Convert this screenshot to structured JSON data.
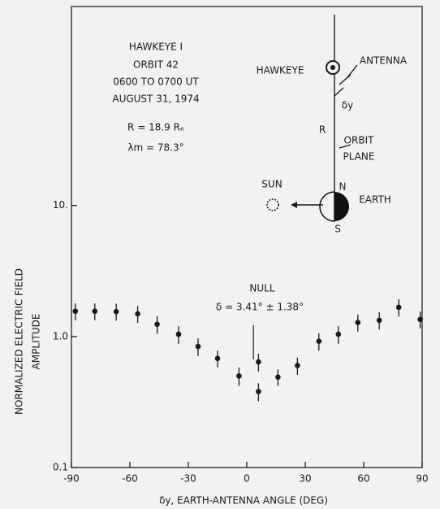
{
  "chart_data": {
    "type": "scatter",
    "annotations": {
      "block": [
        "HAWKEYE I",
        "ORBIT 42",
        "0600 TO 0700 UT",
        "AUGUST 31, 1974",
        "R = 18.9 Rₑ",
        "λm = 78.3°"
      ],
      "hawkeye": "HAWKEYE",
      "antenna": "ANTENNA",
      "delta": "δy",
      "r": "R",
      "orbit": "ORBIT",
      "plane": "PLANE",
      "sun": "SUN",
      "north": "N",
      "earth": "EARTH",
      "south": "S"
    },
    "null": {
      "label": "NULL",
      "text": "δ = 3.41° ± 1.38°",
      "x": 3.41
    },
    "ylabel": [
      "NORMALIZED ELECTRIC FIELD",
      "AMPLITUDE"
    ],
    "xlabel": "δy, EARTH-ANTENNA ANGLE (DEG)",
    "x": [
      -88,
      -78,
      -67,
      -56,
      -46,
      -35,
      -25,
      -15,
      -4,
      6,
      6,
      16,
      26,
      37,
      47,
      57,
      68,
      78,
      89
    ],
    "values": [
      1.56,
      1.56,
      1.55,
      1.49,
      1.24,
      1.04,
      0.84,
      0.68,
      0.5,
      0.38,
      0.64,
      0.49,
      0.6,
      0.92,
      1.04,
      1.28,
      1.33,
      1.67,
      1.35
    ],
    "errors": [
      0.23,
      0.23,
      0.23,
      0.22,
      0.19,
      0.16,
      0.13,
      0.1,
      0.08,
      0.06,
      0.1,
      0.07,
      0.09,
      0.14,
      0.16,
      0.19,
      0.2,
      0.25,
      0.2
    ],
    "color": "#1a1a1a",
    "xlim": [
      -90,
      90
    ],
    "xticks": [
      -90,
      -60,
      -30,
      0,
      30,
      60,
      90
    ],
    "ylim": [
      0.1,
      330
    ],
    "yticks": [
      0.1,
      {
        "value": 1,
        "label": "1.0"
      },
      {
        "value": 10,
        "label": "10."
      }
    ],
    "log_y": true
  }
}
